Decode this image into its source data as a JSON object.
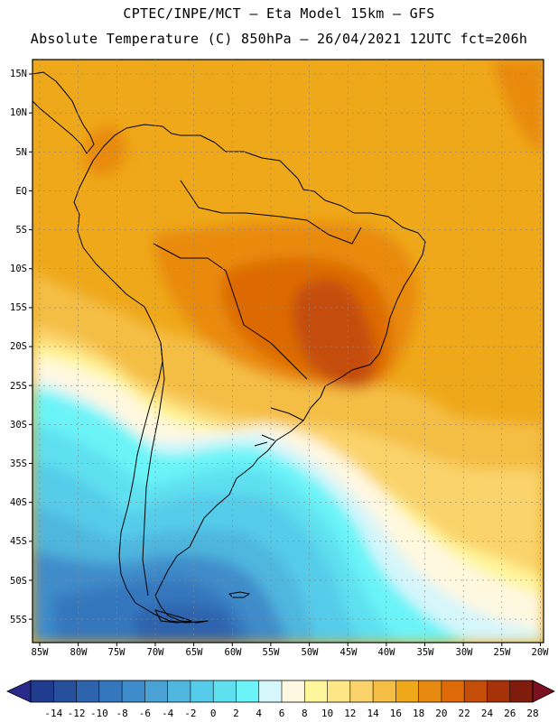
{
  "header": {
    "line1": "CPTEC/INPE/MCT —  Eta Model 15km — GFS",
    "line2": "Absolute Temperature (C) 850hPa — 26/04/2021 12UTC fct=206h"
  },
  "axes": {
    "lat_labels": [
      "15N",
      "10N",
      "5N",
      "EQ",
      "5S",
      "10S",
      "15S",
      "20S",
      "25S",
      "30S",
      "35S",
      "40S",
      "45S",
      "50S",
      "55S"
    ],
    "lon_labels": [
      "85W",
      "80W",
      "75W",
      "70W",
      "65W",
      "60W",
      "55W",
      "50W",
      "45W",
      "40W",
      "35W",
      "30W",
      "25W",
      "20W"
    ]
  },
  "colorbar": {
    "labels": [
      "-14",
      "-12",
      "-10",
      "-8",
      "-6",
      "-4",
      "-2",
      "0",
      "2",
      "4",
      "6",
      "8",
      "10",
      "12",
      "14",
      "16",
      "18",
      "20",
      "22",
      "24",
      "26",
      "28"
    ],
    "colors": [
      "#1f3c8f",
      "#26509c",
      "#2e64ad",
      "#3577bd",
      "#3f8cca",
      "#4aa1d4",
      "#4fb6de",
      "#55ccea",
      "#5fe0f0",
      "#6af4f8",
      "#d5f6fb",
      "#fff8e0",
      "#fff59a",
      "#fde686",
      "#fad36a",
      "#f4be45",
      "#efa81a",
      "#e98a10",
      "#dd6a06",
      "#c44d07",
      "#a53208",
      "#7f1c0c"
    ],
    "under_color": "#2a2a8c",
    "over_color": "#7a1020"
  },
  "map_colors": {
    "tropical": "#efa81a",
    "warm": "#e98a10",
    "hot": "#dd6a06",
    "hottest": "#c44d07",
    "mild": "#f4be45",
    "pale": "#fad36a",
    "light": "#fff59a",
    "cream": "#fff8e0",
    "ice": "#d5f6fb",
    "cyan": "#6af4f8",
    "cyan2": "#5fe0f0",
    "blue1": "#55ccea",
    "blue2": "#4fb6de",
    "blue3": "#3f8cca",
    "blue4": "#3577bd",
    "blue5": "#2e64ad"
  }
}
